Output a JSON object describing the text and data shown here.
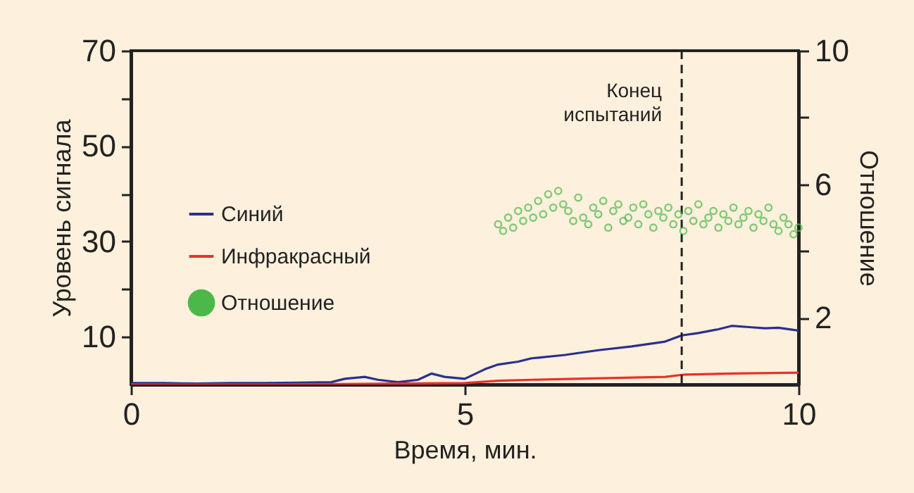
{
  "chart_data": {
    "type": "line",
    "xlabel": "Время, мин.",
    "ylabel": "Уровень сигнала",
    "y2label": "Отношение",
    "xlim": [
      0,
      10
    ],
    "xticks": [
      0,
      5,
      10
    ],
    "ylim": [
      0,
      70
    ],
    "yticks": [
      10,
      {
        "value": 20,
        "label": null
      },
      30,
      {
        "value": 40,
        "label": null
      },
      50,
      {
        "value": 60,
        "label": null
      },
      70
    ],
    "y2lim": [
      0,
      10
    ],
    "y2ticks": [
      2,
      {
        "value": 4,
        "label": null
      },
      6,
      {
        "value": 8,
        "label": null
      },
      10
    ],
    "legend": "left",
    "grid": false,
    "series": [
      {
        "name": "Синий",
        "color": "#2b2f8f",
        "x": [
          0,
          0.5,
          1,
          1.5,
          2,
          2.5,
          3,
          3.2,
          3.5,
          3.7,
          4,
          4.3,
          4.5,
          4.7,
          5,
          5.3,
          5.5,
          5.8,
          6,
          6.5,
          7,
          7.5,
          8,
          8.25,
          8.5,
          8.8,
          9,
          9.3,
          9.5,
          9.7,
          10
        ],
        "values": [
          0.3,
          0.3,
          0.2,
          0.3,
          0.3,
          0.4,
          0.5,
          1.2,
          1.6,
          1.0,
          0.5,
          1.0,
          2.3,
          1.6,
          1.2,
          3.2,
          4.2,
          4.8,
          5.5,
          6.2,
          7.2,
          8.0,
          9.0,
          10.3,
          10.8,
          11.6,
          12.3,
          12.0,
          11.8,
          11.9,
          11.3
        ]
      },
      {
        "name": "Инфракрасный",
        "color": "#e8322a",
        "x": [
          0,
          2,
          4,
          5,
          5.5,
          6,
          7,
          8,
          8.3,
          9,
          10
        ],
        "values": [
          0,
          0,
          0.2,
          0.3,
          0.8,
          1.0,
          1.3,
          1.6,
          2.1,
          2.3,
          2.5
        ]
      },
      {
        "name": "Отношение",
        "color": "#4cb84a",
        "type": "scatter",
        "axis": "y2",
        "marker": "circle",
        "x": [
          5.5,
          5.575,
          5.65,
          5.725,
          5.8,
          5.875,
          5.95,
          6.025,
          6.1,
          6.175,
          6.25,
          6.325,
          6.4,
          6.475,
          6.55,
          6.625,
          6.7,
          6.775,
          6.85,
          6.925,
          7,
          7.075,
          7.15,
          7.225,
          7.3,
          7.375,
          7.45,
          7.525,
          7.6,
          7.675,
          7.75,
          7.825,
          7.9,
          7.975,
          8.05,
          8.125,
          8.2,
          8.275,
          8.35,
          8.425,
          8.5,
          8.575,
          8.65,
          8.725,
          8.8,
          8.875,
          8.95,
          9.025,
          9.1,
          9.175,
          9.25,
          9.325,
          9.4,
          9.475,
          9.55,
          9.625,
          9.7,
          9.775,
          9.85,
          9.925,
          10
        ],
        "values": [
          4.8,
          4.6,
          5.0,
          4.7,
          5.2,
          4.9,
          5.3,
          5.0,
          5.5,
          5.1,
          5.7,
          5.3,
          5.8,
          5.4,
          5.2,
          4.9,
          5.6,
          5.0,
          4.8,
          5.3,
          5.1,
          5.5,
          4.7,
          5.2,
          5.4,
          4.9,
          5.0,
          5.3,
          4.8,
          5.4,
          5.1,
          4.7,
          5.2,
          5.0,
          5.3,
          4.8,
          5.1,
          4.6,
          5.2,
          4.9,
          5.4,
          4.8,
          5.0,
          5.2,
          4.7,
          5.1,
          4.9,
          5.3,
          4.8,
          5.0,
          5.2,
          4.7,
          5.1,
          4.9,
          5.3,
          4.8,
          4.6,
          5.0,
          4.8,
          4.5,
          4.7
        ]
      }
    ],
    "ref_lines": [
      {
        "axis": "x",
        "value": 8.25,
        "label": "Конец испытаний",
        "line_style": "dashed",
        "color": "#222222"
      }
    ]
  }
}
